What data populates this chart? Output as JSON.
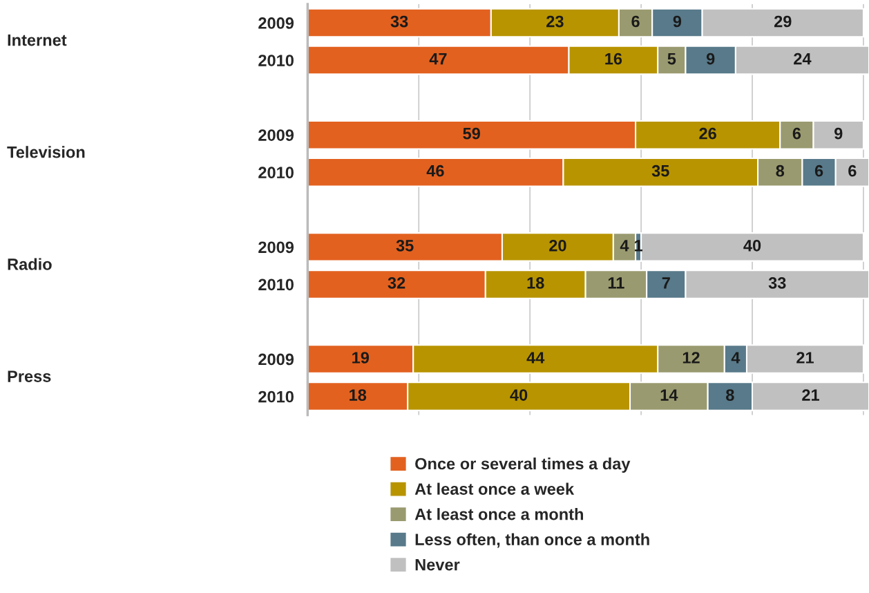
{
  "chart_data": {
    "type": "bar",
    "orientation": "horizontal",
    "stacked": true,
    "categories": [
      "2009",
      "2010",
      "2009",
      "2010",
      "2009",
      "2010",
      "2009",
      "2010"
    ],
    "series": [
      {
        "name": "Once or several times a day",
        "color": "#e2611f",
        "values": [
          33,
          47,
          59,
          46,
          35,
          32,
          19,
          18
        ]
      },
      {
        "name": "At least once a week",
        "color": "#b89400",
        "values": [
          23,
          16,
          26,
          35,
          20,
          18,
          44,
          40
        ]
      },
      {
        "name": "At least once a month",
        "color": "#9a9a70",
        "values": [
          6,
          5,
          6,
          8,
          4,
          11,
          12,
          14
        ]
      },
      {
        "name": "Less often, than once a month",
        "color": "#587a8a",
        "values": [
          9,
          9,
          null,
          6,
          1,
          7,
          4,
          8
        ]
      },
      {
        "name": "Never",
        "color": "#c0c0c0",
        "values": [
          29,
          24,
          9,
          6,
          40,
          33,
          21,
          21
        ]
      }
    ],
    "annotations": [
      "Internet",
      "Television",
      "Radio",
      "Press"
    ],
    "xlim": [
      0,
      101
    ],
    "xticks": [
      {
        "value": 0,
        "label": null
      },
      {
        "value": 20,
        "label": null
      },
      {
        "value": 40,
        "label": null
      },
      {
        "value": 60,
        "label": null
      },
      {
        "value": 80,
        "label": null
      },
      {
        "value": 100,
        "label": null
      }
    ],
    "tick_labels": "y",
    "grid": "x",
    "legend": "bottom",
    "data_labels": true
  }
}
